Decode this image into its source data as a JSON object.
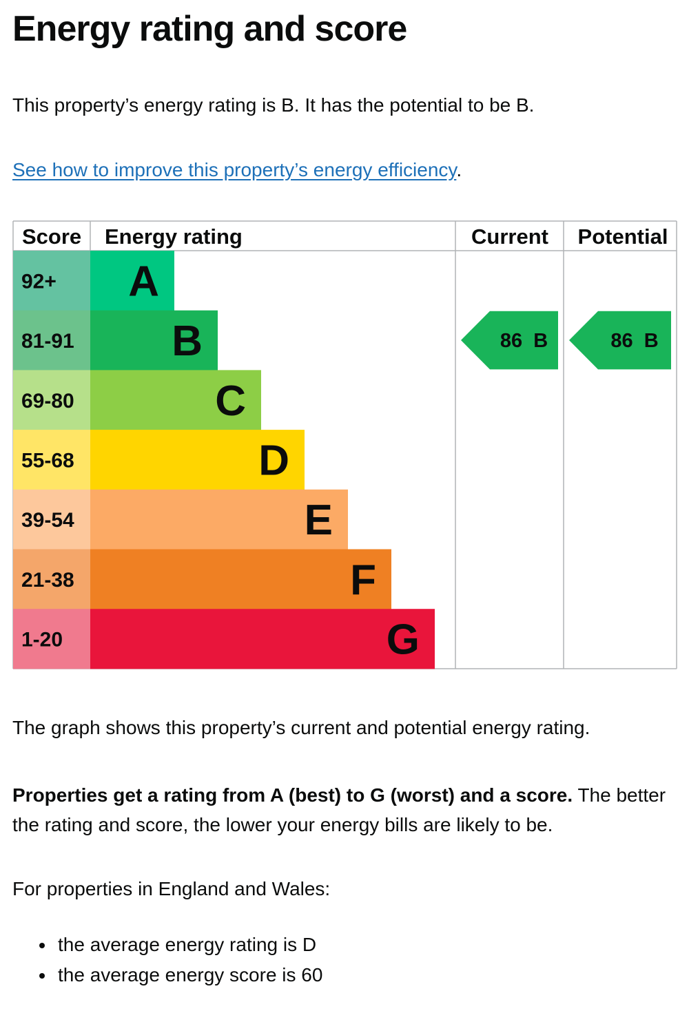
{
  "page": {
    "title": "Energy rating and score",
    "intro": "This property’s energy rating is B. It has the potential to be B.",
    "improve_link": "See how to improve this property’s energy efficiency",
    "improve_link_suffix": ".",
    "graph_description": "The graph shows this property’s current and potential energy rating.",
    "ratings_bold": "Properties get a rating from A (best) to G (worst) and a score.",
    "ratings_rest": " The better the rating and score, the lower your energy bills are likely to be.",
    "for_properties": "For properties in England and Wales:",
    "averages": [
      "the average energy rating is D",
      "the average energy score is 60"
    ]
  },
  "chart_data": {
    "type": "bar",
    "headers": {
      "score": "Score",
      "rating": "Energy rating",
      "current": "Current",
      "potential": "Potential"
    },
    "bands": [
      {
        "score": "92+",
        "letter": "A",
        "color": "#00c781",
        "score_color": "#64c2a1"
      },
      {
        "score": "81-91",
        "letter": "B",
        "color": "#19b459",
        "score_color": "#6cc28c"
      },
      {
        "score": "69-80",
        "letter": "C",
        "color": "#8dce46",
        "score_color": "#b6e08a"
      },
      {
        "score": "55-68",
        "letter": "D",
        "color": "#ffd500",
        "score_color": "#ffe566"
      },
      {
        "score": "39-54",
        "letter": "E",
        "color": "#fcaa65",
        "score_color": "#fdc89c"
      },
      {
        "score": "21-38",
        "letter": "F",
        "color": "#ef8023",
        "score_color": "#f4a66a"
      },
      {
        "score": "1-20",
        "letter": "G",
        "color": "#e9153b",
        "score_color": "#f07a8e"
      }
    ],
    "current": {
      "score": 86,
      "letter": "B",
      "label": "86  B",
      "color": "#19b459"
    },
    "potential": {
      "score": 86,
      "letter": "B",
      "label": "86  B",
      "color": "#19b459"
    }
  }
}
